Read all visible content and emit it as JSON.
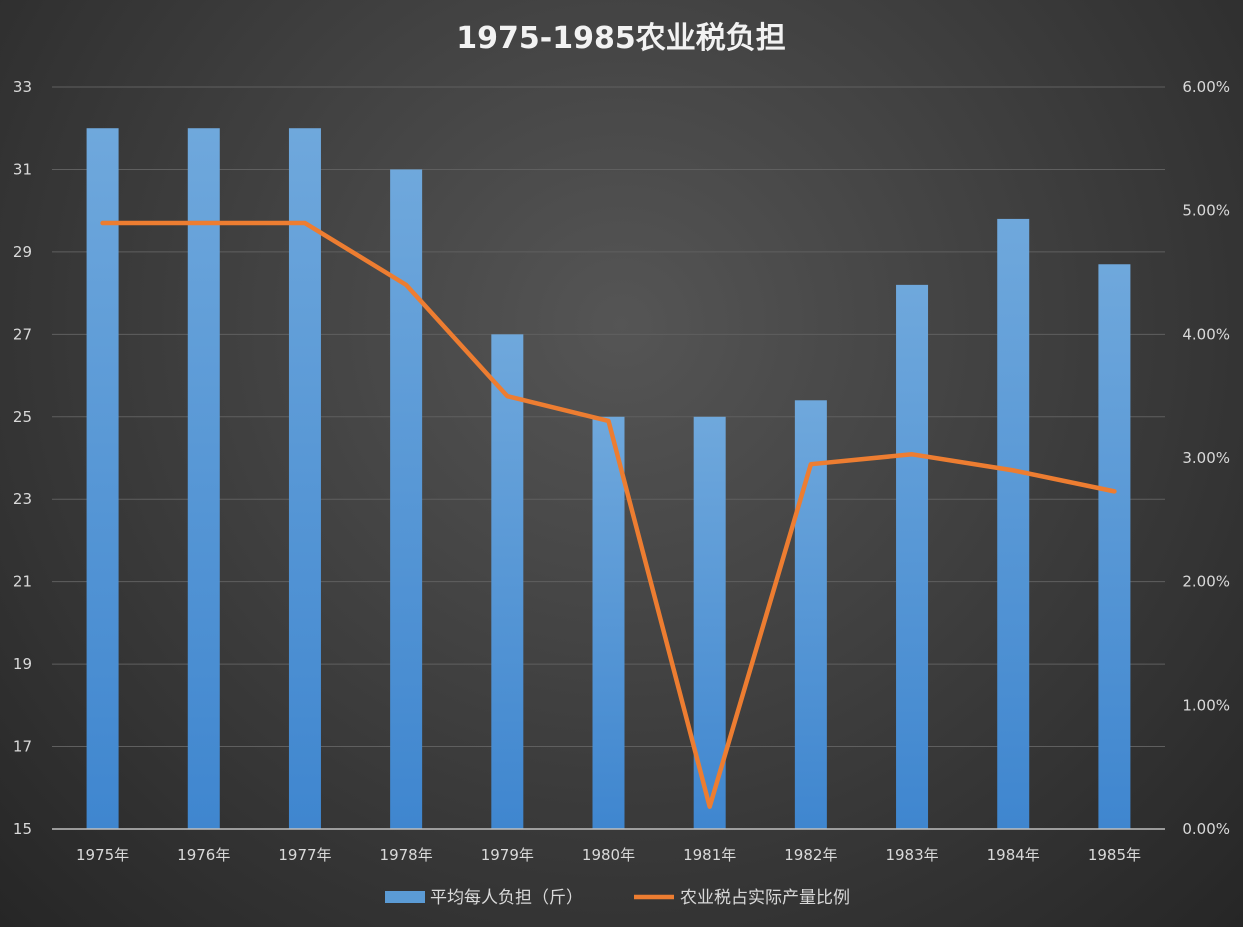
{
  "chart_data": {
    "type": "bar",
    "title": "1975-1985农业税负担",
    "categories": [
      "1975年",
      "1976年",
      "1977年",
      "1978年",
      "1979年",
      "1980年",
      "1981年",
      "1982年",
      "1983年",
      "1984年",
      "1985年"
    ],
    "series": [
      {
        "name": "平均每人负担（斤）",
        "type": "bar",
        "axis": "left",
        "color": "#5b9bd5",
        "values": [
          32,
          32,
          32,
          31,
          27,
          25,
          25,
          25.4,
          28.2,
          29.8,
          28.7
        ]
      },
      {
        "name": "农业税占实际产量比例",
        "type": "line",
        "axis": "right",
        "color": "#ed7d31",
        "values": [
          0.049,
          0.049,
          0.049,
          0.044,
          0.035,
          0.033,
          0.0018,
          0.0295,
          0.0303,
          0.029,
          0.0273
        ]
      }
    ],
    "y_left": {
      "min": 15,
      "max": 33,
      "ticks": [
        15,
        17,
        19,
        21,
        23,
        25,
        27,
        29,
        31,
        33
      ],
      "tick_labels": [
        "15",
        "17",
        "19",
        "21",
        "23",
        "25",
        "27",
        "29",
        "31",
        "33"
      ]
    },
    "y_right": {
      "min": 0,
      "max": 0.06,
      "ticks": [
        0,
        0.01,
        0.02,
        0.03,
        0.04,
        0.05,
        0.06
      ],
      "tick_labels": [
        "0.00%",
        "1.00%",
        "2.00%",
        "3.00%",
        "4.00%",
        "5.00%",
        "6.00%"
      ]
    },
    "grid": true,
    "legend_position": "bottom"
  }
}
